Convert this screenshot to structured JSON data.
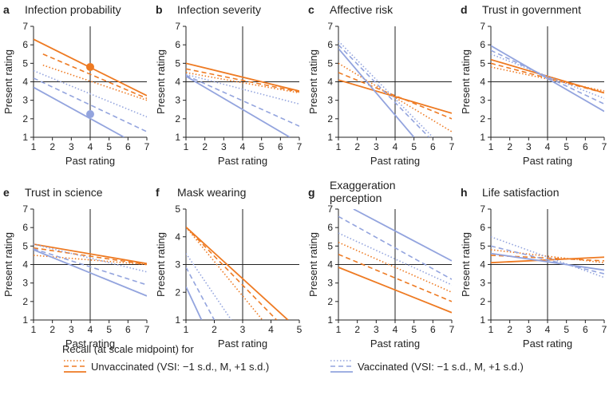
{
  "colors": {
    "unvaccinated": "#EE7A22",
    "vaccinated": "#93A4DE",
    "axis": "#222222",
    "text": "#222222"
  },
  "legend": {
    "heading": "Recall (at scale midpoint) for",
    "unvaccinated": "Unvaccinated (VSI: −1 s.d., M, +1 s.d.)",
    "vaccinated": "Vaccinated (VSI: −1 s.d., M, +1 s.d.)"
  },
  "chart_data": [
    {
      "type": "line",
      "letter": "a",
      "title": "Infection probability",
      "xlabel": "Past rating",
      "ylabel": "Present rating",
      "xlim": [
        1,
        7
      ],
      "ylim": [
        1,
        7
      ],
      "midpoint": 4,
      "series": [
        {
          "group": "unvaccinated",
          "style": "dotted",
          "x": [
            1.5,
            7
          ],
          "y": [
            4.9,
            3.0
          ]
        },
        {
          "group": "unvaccinated",
          "style": "dashed",
          "x": [
            1.5,
            7
          ],
          "y": [
            5.5,
            3.1
          ]
        },
        {
          "group": "unvaccinated",
          "style": "solid",
          "x": [
            1,
            7
          ],
          "y": [
            6.3,
            3.25
          ]
        },
        {
          "group": "vaccinated",
          "style": "dotted",
          "x": [
            1,
            7
          ],
          "y": [
            4.6,
            2.1
          ]
        },
        {
          "group": "vaccinated",
          "style": "dashed",
          "x": [
            1,
            7
          ],
          "y": [
            4.2,
            1.3
          ]
        },
        {
          "group": "vaccinated",
          "style": "solid",
          "x": [
            1,
            5.8
          ],
          "y": [
            3.7,
            1.0
          ]
        }
      ],
      "points": [
        {
          "group": "unvaccinated",
          "x": 4,
          "y": 4.8
        },
        {
          "group": "vaccinated",
          "x": 4,
          "y": 2.25
        }
      ]
    },
    {
      "type": "line",
      "letter": "b",
      "title": "Infection severity",
      "xlabel": "Past rating",
      "ylabel": "Present rating",
      "xlim": [
        1,
        7
      ],
      "ylim": [
        1,
        7
      ],
      "midpoint": 4,
      "series": [
        {
          "group": "unvaccinated",
          "style": "dotted",
          "x": [
            1,
            7
          ],
          "y": [
            4.5,
            3.4
          ]
        },
        {
          "group": "unvaccinated",
          "style": "dashed",
          "x": [
            1,
            7
          ],
          "y": [
            4.7,
            3.45
          ]
        },
        {
          "group": "unvaccinated",
          "style": "solid",
          "x": [
            1,
            7
          ],
          "y": [
            5.0,
            3.5
          ]
        },
        {
          "group": "vaccinated",
          "style": "dotted",
          "x": [
            1,
            7
          ],
          "y": [
            4.4,
            2.8
          ]
        },
        {
          "group": "vaccinated",
          "style": "dashed",
          "x": [
            1,
            7
          ],
          "y": [
            4.35,
            1.6
          ]
        },
        {
          "group": "vaccinated",
          "style": "solid",
          "x": [
            1,
            6.5
          ],
          "y": [
            4.3,
            1.0
          ]
        }
      ]
    },
    {
      "type": "line",
      "letter": "c",
      "title": "Affective risk",
      "xlabel": "Past rating",
      "ylabel": "Present rating",
      "xlim": [
        1,
        7
      ],
      "ylim": [
        1,
        7
      ],
      "midpoint": 4,
      "series": [
        {
          "group": "unvaccinated",
          "style": "solid",
          "x": [
            1,
            7
          ],
          "y": [
            4.1,
            2.3
          ]
        },
        {
          "group": "unvaccinated",
          "style": "dashed",
          "x": [
            1,
            7
          ],
          "y": [
            4.5,
            2.0
          ]
        },
        {
          "group": "unvaccinated",
          "style": "dotted",
          "x": [
            1,
            7
          ],
          "y": [
            5.0,
            1.3
          ]
        },
        {
          "group": "vaccinated",
          "style": "dotted",
          "x": [
            1,
            6
          ],
          "y": [
            6.2,
            1.0
          ]
        },
        {
          "group": "vaccinated",
          "style": "dashed",
          "x": [
            1,
            5.8
          ],
          "y": [
            6.0,
            1.0
          ]
        },
        {
          "group": "vaccinated",
          "style": "solid",
          "x": [
            1,
            5
          ],
          "y": [
            5.8,
            1.0
          ]
        }
      ]
    },
    {
      "type": "line",
      "letter": "d",
      "title": "Trust in government",
      "xlabel": "Past rating",
      "ylabel": "Present rating",
      "xlim": [
        1,
        7
      ],
      "ylim": [
        1,
        7
      ],
      "midpoint": 4,
      "series": [
        {
          "group": "unvaccinated",
          "style": "solid",
          "x": [
            1,
            7
          ],
          "y": [
            5.2,
            3.4
          ]
        },
        {
          "group": "unvaccinated",
          "style": "dashed",
          "x": [
            1,
            7
          ],
          "y": [
            5.0,
            3.4
          ]
        },
        {
          "group": "unvaccinated",
          "style": "dotted",
          "x": [
            1,
            7
          ],
          "y": [
            4.8,
            3.5
          ]
        },
        {
          "group": "vaccinated",
          "style": "dotted",
          "x": [
            1,
            7
          ],
          "y": [
            5.5,
            3.1
          ]
        },
        {
          "group": "vaccinated",
          "style": "dashed",
          "x": [
            1,
            7
          ],
          "y": [
            5.7,
            2.8
          ]
        },
        {
          "group": "vaccinated",
          "style": "solid",
          "x": [
            1,
            7
          ],
          "y": [
            5.95,
            2.4
          ]
        }
      ]
    },
    {
      "type": "line",
      "letter": "e",
      "title": "Trust in science",
      "xlabel": "Past rating",
      "ylabel": "Present rating",
      "xlim": [
        1,
        7
      ],
      "ylim": [
        1,
        7
      ],
      "midpoint": 4,
      "series": [
        {
          "group": "unvaccinated",
          "style": "solid",
          "x": [
            1,
            7
          ],
          "y": [
            5.1,
            4.05
          ]
        },
        {
          "group": "unvaccinated",
          "style": "dashed",
          "x": [
            1,
            7
          ],
          "y": [
            4.9,
            4.0
          ]
        },
        {
          "group": "unvaccinated",
          "style": "dotted",
          "x": [
            1,
            7
          ],
          "y": [
            4.5,
            4.0
          ]
        },
        {
          "group": "vaccinated",
          "style": "dotted",
          "x": [
            1,
            7
          ],
          "y": [
            5.1,
            3.6
          ]
        },
        {
          "group": "vaccinated",
          "style": "dashed",
          "x": [
            1,
            7
          ],
          "y": [
            4.85,
            2.9
          ]
        },
        {
          "group": "vaccinated",
          "style": "solid",
          "x": [
            1,
            7
          ],
          "y": [
            4.8,
            2.3
          ]
        }
      ]
    },
    {
      "type": "line",
      "letter": "f",
      "title": "Mask wearing",
      "xlabel": "Past rating",
      "ylabel": "Present rating",
      "xlim": [
        1,
        5
      ],
      "ylim": [
        1,
        5
      ],
      "midpoint": 3,
      "series": [
        {
          "group": "unvaccinated",
          "style": "solid",
          "x": [
            1,
            4.6
          ],
          "y": [
            4.35,
            1.0
          ]
        },
        {
          "group": "unvaccinated",
          "style": "dashed",
          "x": [
            1,
            4.2
          ],
          "y": [
            4.35,
            1.0
          ]
        },
        {
          "group": "unvaccinated",
          "style": "dotted",
          "x": [
            1,
            3.7
          ],
          "y": [
            4.35,
            1.0
          ]
        },
        {
          "group": "vaccinated",
          "style": "dotted",
          "x": [
            1,
            2.6
          ],
          "y": [
            3.4,
            1.0
          ]
        },
        {
          "group": "vaccinated",
          "style": "dashed",
          "x": [
            1,
            2.0
          ],
          "y": [
            2.9,
            1.0
          ]
        },
        {
          "group": "vaccinated",
          "style": "solid",
          "x": [
            1,
            1.55
          ],
          "y": [
            2.2,
            1.0
          ]
        }
      ]
    },
    {
      "type": "line",
      "letter": "g",
      "title": "Exaggeration perception",
      "xlabel": "Past rating",
      "ylabel": "Present rating",
      "xlim": [
        1,
        7
      ],
      "ylim": [
        1,
        7
      ],
      "midpoint": 4,
      "series": [
        {
          "group": "unvaccinated",
          "style": "dotted",
          "x": [
            1,
            7
          ],
          "y": [
            5.2,
            2.5
          ]
        },
        {
          "group": "unvaccinated",
          "style": "dashed",
          "x": [
            1,
            7
          ],
          "y": [
            4.55,
            2.0
          ]
        },
        {
          "group": "unvaccinated",
          "style": "solid",
          "x": [
            1,
            7
          ],
          "y": [
            3.85,
            1.4
          ]
        },
        {
          "group": "vaccinated",
          "style": "dotted",
          "x": [
            1,
            7
          ],
          "y": [
            5.7,
            2.9
          ]
        },
        {
          "group": "vaccinated",
          "style": "dashed",
          "x": [
            1,
            7
          ],
          "y": [
            6.6,
            3.2
          ]
        },
        {
          "group": "vaccinated",
          "style": "solid",
          "x": [
            1.8,
            7
          ],
          "y": [
            7.0,
            4.2
          ]
        }
      ]
    },
    {
      "type": "line",
      "letter": "h",
      "title": "Life satisfaction",
      "xlabel": "Past rating",
      "ylabel": "Present rating",
      "xlim": [
        1,
        7
      ],
      "ylim": [
        1,
        7
      ],
      "midpoint": 4,
      "series": [
        {
          "group": "unvaccinated",
          "style": "solid",
          "x": [
            1,
            7
          ],
          "y": [
            4.1,
            4.4
          ]
        },
        {
          "group": "unvaccinated",
          "style": "dashed",
          "x": [
            1,
            7
          ],
          "y": [
            4.5,
            4.2
          ]
        },
        {
          "group": "unvaccinated",
          "style": "dotted",
          "x": [
            1,
            7
          ],
          "y": [
            4.8,
            4.1
          ]
        },
        {
          "group": "vaccinated",
          "style": "solid",
          "x": [
            1,
            7
          ],
          "y": [
            4.6,
            3.7
          ]
        },
        {
          "group": "vaccinated",
          "style": "dashed",
          "x": [
            1,
            7
          ],
          "y": [
            5.0,
            3.5
          ]
        },
        {
          "group": "vaccinated",
          "style": "dotted",
          "x": [
            1,
            7
          ],
          "y": [
            5.5,
            3.3
          ]
        }
      ]
    }
  ]
}
